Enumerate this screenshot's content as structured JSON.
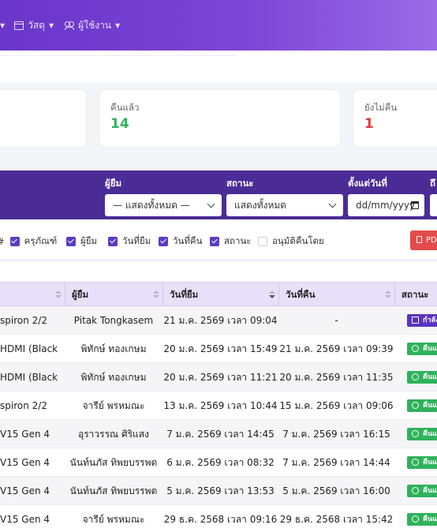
{
  "nav": {
    "items": [
      {
        "label": "",
        "icon": "caret-icon"
      },
      {
        "label": "วัสดุ",
        "icon": "box-icon"
      },
      {
        "label": "ผู้ใช้งาน",
        "icon": "users-icon"
      }
    ]
  },
  "stats": {
    "returned": {
      "label": "คืนแล้ว",
      "value": "14",
      "color": "#2fb25b"
    },
    "not_returned": {
      "label": "ยังไม่คืน",
      "value": "1",
      "color": "#e53935"
    }
  },
  "filters": {
    "borrower": {
      "label": "ผู้ยืม",
      "value": "— แสดงทั้งหมด —"
    },
    "status": {
      "label": "สถานะ",
      "value": "แสดงทั้งหมด"
    },
    "from_date": {
      "label": "ตั้งแต่วันที่",
      "placeholder": "dd/mm/yyyy"
    },
    "to_date": {
      "label": "ถึ"
    }
  },
  "columns_toggle": {
    "hash": "#",
    "equipment": "ครุภัณฑ์",
    "borrower": "ผู้ยืม",
    "borrow_date": "วันที่ยืม",
    "return_date": "วันที่คืน",
    "status": "สถานะ",
    "approved_by": "อนุมัติคืนโดย"
  },
  "export": {
    "pdf_label": "PD"
  },
  "table": {
    "headers": {
      "borrower": "ผู้ยืม",
      "borrow_date": "วันที่ยืม",
      "return_date": "วันที่คืน",
      "status": "สถานะ"
    },
    "rows": [
      {
        "item": "spiron 2/2",
        "borrower": "Pitak Tongkasem",
        "borrow_date": "21 ม.ค. 2569 เวลา 09:04",
        "return_date": "-",
        "status": "กำลัง",
        "status_type": "borrowing"
      },
      {
        "item": "HDMI (Black",
        "borrower": "พิทักษ์ ทองเกษม",
        "borrow_date": "20 ม.ค. 2569 เวลา 15:49",
        "return_date": "21 ม.ค. 2569 เวลา 09:39",
        "status": "คืนแ",
        "status_type": "returned"
      },
      {
        "item": "HDMI (Black",
        "borrower": "พิทักษ์ ทองเกษม",
        "borrow_date": "20 ม.ค. 2569 เวลา 11:21",
        "return_date": "20 ม.ค. 2569 เวลา 11:35",
        "status": "คืนแ",
        "status_type": "returned"
      },
      {
        "item": "spiron 2/2",
        "borrower": "จารีย์ พรหมณะ",
        "borrow_date": "13 ม.ค. 2569 เวลา 10:44",
        "return_date": "15 ม.ค. 2569 เวลา 09:06",
        "status": "คืนแ",
        "status_type": "returned"
      },
      {
        "item": "V15 Gen 4",
        "borrower": "อุราวรรณ ศิริแสง",
        "borrow_date": "7 ม.ค. 2569 เวลา 14:45",
        "return_date": "7 ม.ค. 2569 เวลา 16:15",
        "status": "คืนแ",
        "status_type": "returned"
      },
      {
        "item": "V15 Gen 4",
        "borrower": "นันท์นภัส ทิพยบรรพต",
        "borrow_date": "6 ม.ค. 2569 เวลา 08:32",
        "return_date": "7 ม.ค. 2569 เวลา 14:44",
        "status": "คืนแ",
        "status_type": "returned"
      },
      {
        "item": "V15 Gen 4",
        "borrower": "นันท์นภัส ทิพยบรรพต",
        "borrow_date": "5 ม.ค. 2569 เวลา 13:53",
        "return_date": "5 ม.ค. 2569 เวลา 16:00",
        "status": "คืนแ",
        "status_type": "returned"
      },
      {
        "item": "V15 Gen 4",
        "borrower": "จารีย์ พรหมณะ",
        "borrow_date": "29 ธ.ค. 2568 เวลา 09:16",
        "return_date": "29 ธ.ค. 2568 เวลา 15:42",
        "status": "คืนแ",
        "status_type": "returned"
      }
    ]
  }
}
